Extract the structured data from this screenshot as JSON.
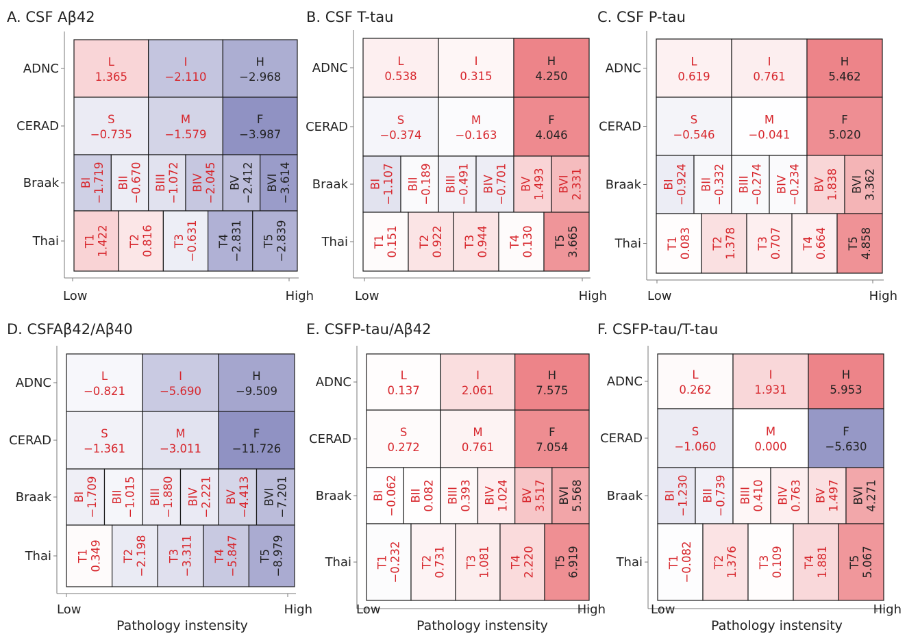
{
  "x_axis_title": "Pathology instensity",
  "chart_data": [
    {
      "type": "heatmap",
      "panel_label": "A.",
      "title": "CSF Aβ42",
      "xlabel": "Pathology instensity",
      "x_tick_labels": [
        "Low",
        "High"
      ],
      "rows": [
        {
          "name": "ADNC",
          "cells": [
            {
              "label": "L",
              "value": "1.365"
            },
            {
              "label": "I",
              "value": "−2.110"
            },
            {
              "label": "H",
              "value": "−2.968"
            }
          ]
        },
        {
          "name": "CERAD",
          "cells": [
            {
              "label": "S",
              "value": "−0.735"
            },
            {
              "label": "M",
              "value": "−1.579"
            },
            {
              "label": "F",
              "value": "−3.987"
            }
          ]
        },
        {
          "name": "Braak",
          "cells": [
            {
              "label": "BI",
              "value": "−1.719"
            },
            {
              "label": "BII",
              "value": "−0.670"
            },
            {
              "label": "BIII",
              "value": "−1.072"
            },
            {
              "label": "BIV",
              "value": "−2.045"
            },
            {
              "label": "BV",
              "value": "−2.412"
            },
            {
              "label": "BVI",
              "value": "−3.614"
            }
          ]
        },
        {
          "name": "Thai",
          "cells": [
            {
              "label": "T1",
              "value": "1.422"
            },
            {
              "label": "T2",
              "value": "0.816"
            },
            {
              "label": "T3",
              "value": "−0.631"
            },
            {
              "label": "T4",
              "value": "−2.831"
            },
            {
              "label": "T5",
              "value": "−2.839"
            }
          ]
        }
      ]
    },
    {
      "type": "heatmap",
      "panel_label": "B.",
      "title": "CSF T-tau",
      "xlabel": "",
      "x_tick_labels": [
        "Low",
        "High"
      ],
      "rows": [
        {
          "name": "ADNC",
          "cells": [
            {
              "label": "L",
              "value": "0.538"
            },
            {
              "label": "I",
              "value": "0.315"
            },
            {
              "label": "H",
              "value": "4.250"
            }
          ]
        },
        {
          "name": "CERAD",
          "cells": [
            {
              "label": "S",
              "value": "−0.374"
            },
            {
              "label": "M",
              "value": "−0.163"
            },
            {
              "label": "F",
              "value": "4.046"
            }
          ]
        },
        {
          "name": "Braak",
          "cells": [
            {
              "label": "BI",
              "value": "−1.107"
            },
            {
              "label": "BII",
              "value": "−0.189"
            },
            {
              "label": "BIII",
              "value": "−0.491"
            },
            {
              "label": "BIV",
              "value": "−0.701"
            },
            {
              "label": "BV",
              "value": "1.493"
            },
            {
              "label": "BVI",
              "value": "2.331"
            }
          ]
        },
        {
          "name": "Thai",
          "cells": [
            {
              "label": "T1",
              "value": "0.151"
            },
            {
              "label": "T2",
              "value": "0.922"
            },
            {
              "label": "T3",
              "value": "0.944"
            },
            {
              "label": "T4",
              "value": "0.130"
            },
            {
              "label": "T5",
              "value": "3.665"
            }
          ]
        }
      ]
    },
    {
      "type": "heatmap",
      "panel_label": "C.",
      "title": "CSF P-tau",
      "xlabel": "",
      "x_tick_labels": [
        "Low",
        "High"
      ],
      "rows": [
        {
          "name": "ADNC",
          "cells": [
            {
              "label": "L",
              "value": "0.619"
            },
            {
              "label": "I",
              "value": "0.761"
            },
            {
              "label": "H",
              "value": "5.462"
            }
          ]
        },
        {
          "name": "CERAD",
          "cells": [
            {
              "label": "S",
              "value": "−0.546"
            },
            {
              "label": "M",
              "value": "−0.041"
            },
            {
              "label": "F",
              "value": "5.020"
            }
          ]
        },
        {
          "name": "Braak",
          "cells": [
            {
              "label": "BI",
              "value": "−0.924"
            },
            {
              "label": "BII",
              "value": "−0.332"
            },
            {
              "label": "BIII",
              "value": "−0.274"
            },
            {
              "label": "BIV",
              "value": "−0.234"
            },
            {
              "label": "BV",
              "value": "1.838"
            },
            {
              "label": "BVI",
              "value": "3.362"
            }
          ]
        },
        {
          "name": "Thai",
          "cells": [
            {
              "label": "T1",
              "value": "0.083"
            },
            {
              "label": "T2",
              "value": "1.378"
            },
            {
              "label": "T3",
              "value": "0.707"
            },
            {
              "label": "T4",
              "value": "0.664"
            },
            {
              "label": "T5",
              "value": "4.858"
            }
          ]
        }
      ]
    },
    {
      "type": "heatmap",
      "panel_label": "D.",
      "title": "CSFAβ42/Aβ40",
      "xlabel": "Pathology instensity",
      "x_tick_labels": [
        "Low",
        "High"
      ],
      "rows": [
        {
          "name": "ADNC",
          "cells": [
            {
              "label": "L",
              "value": "−0.821"
            },
            {
              "label": "I",
              "value": "−5.690"
            },
            {
              "label": "H",
              "value": "−9.509"
            }
          ]
        },
        {
          "name": "CERAD",
          "cells": [
            {
              "label": "S",
              "value": "−1.361"
            },
            {
              "label": "M",
              "value": "−3.011"
            },
            {
              "label": "F",
              "value": "−11.726"
            }
          ]
        },
        {
          "name": "Braak",
          "cells": [
            {
              "label": "BI",
              "value": "−1.709"
            },
            {
              "label": "BII",
              "value": "−1.015"
            },
            {
              "label": "BIII",
              "value": "−1.880"
            },
            {
              "label": "BIV",
              "value": "−2.221"
            },
            {
              "label": "BV",
              "value": "−4.413"
            },
            {
              "label": "BVI",
              "value": "−7.201"
            }
          ]
        },
        {
          "name": "Thai",
          "cells": [
            {
              "label": "T1",
              "value": "0.349"
            },
            {
              "label": "T2",
              "value": "−2.198"
            },
            {
              "label": "T3",
              "value": "−3.311"
            },
            {
              "label": "T4",
              "value": "−5.847"
            },
            {
              "label": "T5",
              "value": "−8.979"
            }
          ]
        }
      ]
    },
    {
      "type": "heatmap",
      "panel_label": "E.",
      "title": "CSFP-tau/Aβ42",
      "xlabel": "Pathology instensity",
      "x_tick_labels": [
        "Low",
        "High"
      ],
      "rows": [
        {
          "name": "ADNC",
          "cells": [
            {
              "label": "L",
              "value": "0.137"
            },
            {
              "label": "I",
              "value": "2.061"
            },
            {
              "label": "H",
              "value": "7.575"
            }
          ]
        },
        {
          "name": "CERAD",
          "cells": [
            {
              "label": "S",
              "value": "0.272"
            },
            {
              "label": "M",
              "value": "0.761"
            },
            {
              "label": "F",
              "value": "7.054"
            }
          ]
        },
        {
          "name": "Braak",
          "cells": [
            {
              "label": "BI",
              "value": "−0.062"
            },
            {
              "label": "BII",
              "value": "0.082"
            },
            {
              "label": "BIII",
              "value": "0.393"
            },
            {
              "label": "BIV",
              "value": "1.024"
            },
            {
              "label": "BV",
              "value": "3.517"
            },
            {
              "label": "BVI",
              "value": "5.568"
            }
          ]
        },
        {
          "name": "Thai",
          "cells": [
            {
              "label": "T1",
              "value": "−0.232"
            },
            {
              "label": "T2",
              "value": "0.731"
            },
            {
              "label": "T3",
              "value": "1.081"
            },
            {
              "label": "T4",
              "value": "2.220"
            },
            {
              "label": "T5",
              "value": "6.919"
            }
          ]
        }
      ]
    },
    {
      "type": "heatmap",
      "panel_label": "F.",
      "title": "CSFP-tau/T-tau",
      "xlabel": "Pathology instensity",
      "x_tick_labels": [
        "Low",
        "High"
      ],
      "rows": [
        {
          "name": "ADNC",
          "cells": [
            {
              "label": "L",
              "value": "0.262"
            },
            {
              "label": "I",
              "value": "1.931"
            },
            {
              "label": "H",
              "value": "5.953"
            }
          ]
        },
        {
          "name": "CERAD",
          "cells": [
            {
              "label": "S",
              "value": "−1.060"
            },
            {
              "label": "M",
              "value": "0.000"
            },
            {
              "label": "F",
              "value": "−5.630"
            }
          ]
        },
        {
          "name": "Braak",
          "cells": [
            {
              "label": "BI",
              "value": "−1.230"
            },
            {
              "label": "BII",
              "value": "−0.739"
            },
            {
              "label": "BIII",
              "value": "0.410"
            },
            {
              "label": "BIV",
              "value": "0.763"
            },
            {
              "label": "BV",
              "value": "1.497"
            },
            {
              "label": "BVI",
              "value": "4.271"
            }
          ]
        },
        {
          "name": "Thai",
          "cells": [
            {
              "label": "T1",
              "value": "−0.082"
            },
            {
              "label": "T2",
              "value": "1.376"
            },
            {
              "label": "T3",
              "value": "0.109"
            },
            {
              "label": "T4",
              "value": "1.881"
            },
            {
              "label": "T5",
              "value": "5.067"
            }
          ]
        }
      ]
    }
  ],
  "colors": {
    "positive": "#ec7e83",
    "negative": "#8a8cc0",
    "neutral": "#ffffff",
    "text_red": "#d7262c",
    "text_dark": "#222222"
  }
}
